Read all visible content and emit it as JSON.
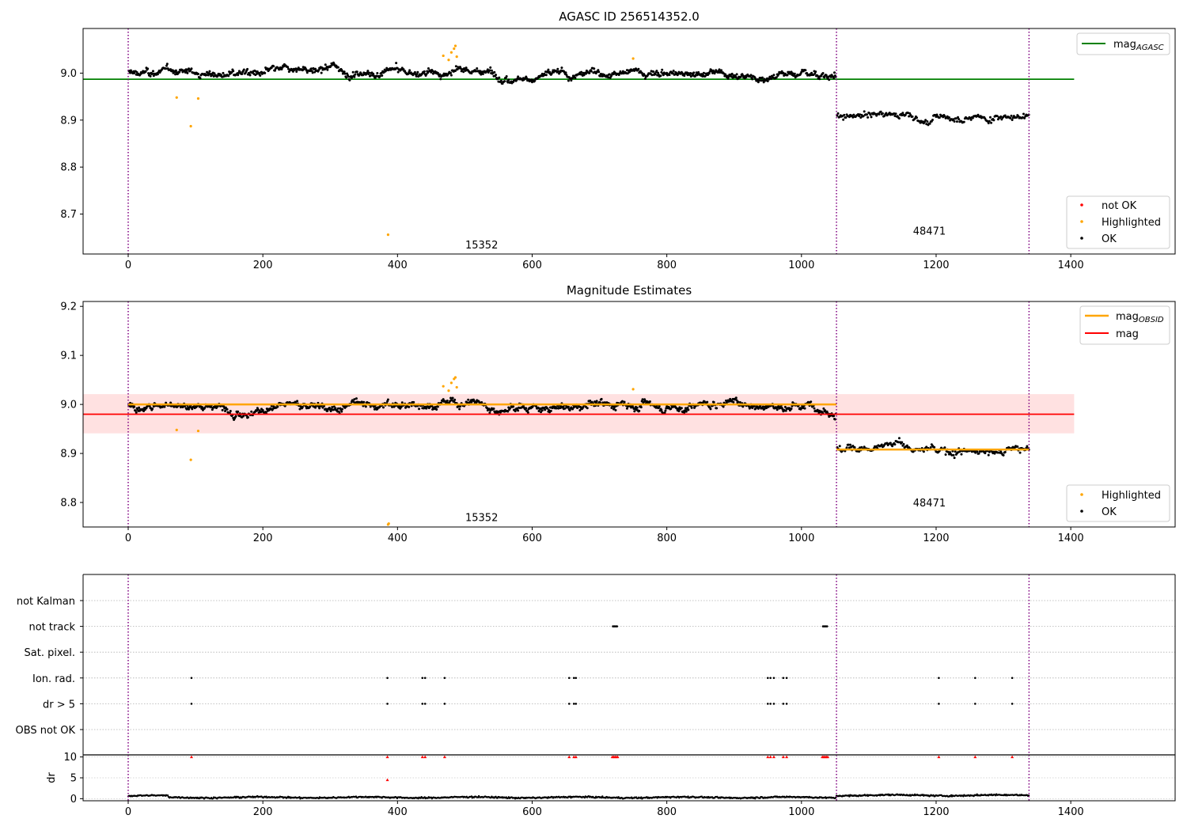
{
  "figure": {
    "title": "AGASC ID 256514352.0",
    "colors": {
      "ok": "#000000",
      "highlighted": "#ffa500",
      "not_ok": "#ff0000",
      "agasc_line": "#008000",
      "obsid_line": "#ffa500",
      "mag_line": "#ff0000",
      "mag_band": "#ffdede",
      "obs_boundary": "#800080",
      "grid": "#b0b0b0"
    }
  },
  "chart_data": [
    {
      "id": "panel1",
      "type": "scatter",
      "title": "",
      "xlim": [
        -67,
        1555
      ],
      "ylim": [
        8.615,
        9.095
      ],
      "xticks": [
        0,
        200,
        400,
        600,
        800,
        1000,
        1200,
        1400
      ],
      "yticks": [
        8.7,
        8.8,
        8.9,
        9.0
      ],
      "xtick_labels": [
        "0",
        "200",
        "400",
        "600",
        "800",
        "1000",
        "1200",
        "1400"
      ],
      "ytick_labels": [
        "8.7",
        "8.8",
        "8.9",
        "9.0"
      ],
      "obs_boundaries": [
        0,
        1052,
        1338
      ],
      "obsid_labels": [
        {
          "text": "15352",
          "x": 525,
          "y": 8.635
        },
        {
          "text": "48471",
          "x": 1190,
          "y": 8.665
        }
      ],
      "segments": [
        {
          "x_start": 0,
          "x_end": 1052,
          "mean": 9.0
        },
        {
          "x_start": 1052,
          "x_end": 1338,
          "mean": 8.908
        }
      ],
      "hlines": [
        {
          "name": "mag",
          "sub": "AGASC",
          "y": 8.987,
          "x_start": -67,
          "x_end": 1405
        }
      ],
      "highlighted_points": [
        {
          "x": 72,
          "y": 8.948
        },
        {
          "x": 93,
          "y": 8.887
        },
        {
          "x": 104,
          "y": 8.946
        },
        {
          "x": 386,
          "y": 8.656
        },
        {
          "x": 468,
          "y": 9.037
        },
        {
          "x": 476,
          "y": 9.028
        },
        {
          "x": 480,
          "y": 9.044
        },
        {
          "x": 484,
          "y": 9.052
        },
        {
          "x": 486,
          "y": 9.058
        },
        {
          "x": 488,
          "y": 9.035
        },
        {
          "x": 750,
          "y": 9.031
        }
      ],
      "legend_lines": [
        {
          "label": "mag",
          "sub": "AGASC"
        }
      ],
      "legend_markers": [
        {
          "label": "not OK"
        },
        {
          "label": "Highlighted"
        },
        {
          "label": "OK"
        }
      ]
    },
    {
      "id": "panel2",
      "type": "scatter",
      "title": "Magnitude Estimates",
      "xlim": [
        -67,
        1555
      ],
      "ylim": [
        8.75,
        9.21
      ],
      "xticks": [
        0,
        200,
        400,
        600,
        800,
        1000,
        1200,
        1400
      ],
      "yticks": [
        8.8,
        8.9,
        9.0,
        9.1,
        9.2
      ],
      "xtick_labels": [
        "0",
        "200",
        "400",
        "600",
        "800",
        "1000",
        "1200",
        "1400"
      ],
      "ytick_labels": [
        "8.8",
        "8.9",
        "9.0",
        "9.1",
        "9.2"
      ],
      "obs_boundaries": [
        0,
        1052,
        1338
      ],
      "obsid_labels": [
        {
          "text": "15352",
          "x": 525,
          "y": 8.77
        },
        {
          "text": "48471",
          "x": 1190,
          "y": 8.8
        }
      ],
      "segments": [
        {
          "x_start": 0,
          "x_end": 1052,
          "mean": 9.0
        },
        {
          "x_start": 1052,
          "x_end": 1338,
          "mean": 8.908
        }
      ],
      "obsid_mags": [
        {
          "x_start": 0,
          "x_end": 1052,
          "y": 9.0
        },
        {
          "x_start": 1052,
          "x_end": 1338,
          "y": 8.908
        }
      ],
      "mag": {
        "y": 8.98,
        "band": [
          8.941,
          9.021
        ],
        "x_start": -67,
        "x_end": 1405
      },
      "highlighted_points": [
        {
          "x": 72,
          "y": 8.948
        },
        {
          "x": 93,
          "y": 8.887
        },
        {
          "x": 104,
          "y": 8.946
        },
        {
          "x": 386,
          "y": 8.755
        },
        {
          "x": 387,
          "y": 8.757
        },
        {
          "x": 468,
          "y": 9.037
        },
        {
          "x": 476,
          "y": 9.028
        },
        {
          "x": 480,
          "y": 9.044
        },
        {
          "x": 484,
          "y": 9.052
        },
        {
          "x": 486,
          "y": 9.055
        },
        {
          "x": 488,
          "y": 9.035
        },
        {
          "x": 750,
          "y": 9.031
        }
      ],
      "legend_lines": [
        {
          "label": "mag",
          "sub": "OBSID"
        },
        {
          "label": "mag",
          "sub": ""
        }
      ],
      "legend_markers": [
        {
          "label": "Highlighted"
        },
        {
          "label": "OK"
        }
      ]
    },
    {
      "id": "panel3_flags",
      "type": "scatter",
      "xlim": [
        -67,
        1555
      ],
      "categories": [
        "not Kalman",
        "not track",
        "Sat. pixel.",
        "Ion. rad.",
        "dr > 5",
        "OBS not OK"
      ],
      "obs_boundaries": [
        0,
        1052,
        1338
      ],
      "flags": {
        "not Kalman": [],
        "not track": [
          720,
          722,
          724,
          726,
          1032,
          1034,
          1036,
          1038
        ],
        "Sat. pixel.": [],
        "Ion. rad.": [
          94,
          385,
          437,
          441,
          470,
          655,
          662,
          665,
          950,
          954,
          959,
          973,
          978,
          1204,
          1258,
          1313
        ],
        "dr > 5": [
          94,
          385,
          437,
          441,
          470,
          655,
          662,
          665,
          950,
          954,
          959,
          973,
          978,
          1204,
          1258,
          1313
        ],
        "OBS not OK": []
      }
    },
    {
      "id": "panel3_dr",
      "type": "scatter",
      "ylabel": "dr",
      "xlim": [
        -67,
        1555
      ],
      "ylim": [
        -0.5,
        10.5
      ],
      "xticks": [
        0,
        200,
        400,
        600,
        800,
        1000,
        1200,
        1400
      ],
      "yticks": [
        0,
        5,
        10
      ],
      "xtick_labels": [
        "0",
        "200",
        "400",
        "600",
        "800",
        "1000",
        "1200",
        "1400"
      ],
      "ytick_labels": [
        "0",
        "5",
        "10"
      ],
      "obs_boundaries": [
        0,
        1052,
        1338
      ],
      "dr_level_segments": [
        {
          "x_start": 0,
          "x_end": 60,
          "dr": 0.65
        },
        {
          "x_start": 60,
          "x_end": 1052,
          "dr": 0.3
        },
        {
          "x_start": 1052,
          "x_end": 1338,
          "dr": 0.8
        }
      ],
      "clipped_points": [
        {
          "x": 94,
          "y": 10
        },
        {
          "x": 385,
          "y": 10
        },
        {
          "x": 437,
          "y": 10
        },
        {
          "x": 441,
          "y": 10
        },
        {
          "x": 470,
          "y": 10
        },
        {
          "x": 655,
          "y": 10
        },
        {
          "x": 662,
          "y": 10
        },
        {
          "x": 665,
          "y": 10
        },
        {
          "x": 719,
          "y": 10
        },
        {
          "x": 721,
          "y": 10
        },
        {
          "x": 723,
          "y": 10
        },
        {
          "x": 725,
          "y": 10
        },
        {
          "x": 727,
          "y": 10
        },
        {
          "x": 950,
          "y": 10
        },
        {
          "x": 954,
          "y": 10
        },
        {
          "x": 959,
          "y": 10
        },
        {
          "x": 973,
          "y": 10
        },
        {
          "x": 978,
          "y": 10
        },
        {
          "x": 1031,
          "y": 10
        },
        {
          "x": 1033,
          "y": 10
        },
        {
          "x": 1035,
          "y": 10
        },
        {
          "x": 1037,
          "y": 10
        },
        {
          "x": 1039,
          "y": 10
        },
        {
          "x": 1204,
          "y": 10
        },
        {
          "x": 1258,
          "y": 10
        },
        {
          "x": 1313,
          "y": 10
        },
        {
          "x": 385,
          "y": 4.5
        }
      ]
    }
  ]
}
